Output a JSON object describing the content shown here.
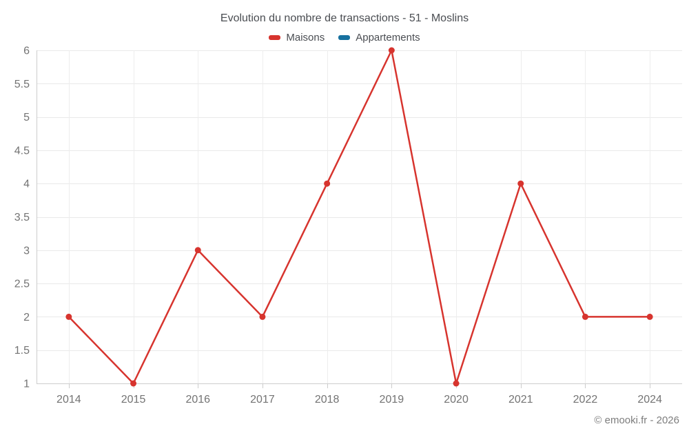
{
  "footer": {
    "credit": "© emooki.fr - 2026"
  },
  "chart_data": {
    "type": "line",
    "title": "Evolution du nombre de transactions - 51 - Moslins",
    "categories": [
      "2014",
      "2015",
      "2016",
      "2017",
      "2018",
      "2019",
      "2020",
      "2021",
      "2022",
      "2024"
    ],
    "series": [
      {
        "name": "Maisons",
        "color": "#d7342e",
        "values": [
          2,
          1,
          3,
          2,
          4,
          6,
          1,
          4,
          2,
          2
        ]
      },
      {
        "name": "Appartements",
        "color": "#17719f",
        "values": []
      }
    ],
    "ylim": [
      1,
      6
    ],
    "ytick_step": 0.5,
    "yticks": [
      1,
      1.5,
      2,
      2.5,
      3,
      3.5,
      4,
      4.5,
      5,
      5.5,
      6
    ],
    "grid": true,
    "legend_position": "top",
    "marker": "circle",
    "grid_color": "#e9e9e9",
    "axis_color": "#cccccc",
    "tick_label_color": "#737373",
    "xlabel": "",
    "ylabel": ""
  }
}
